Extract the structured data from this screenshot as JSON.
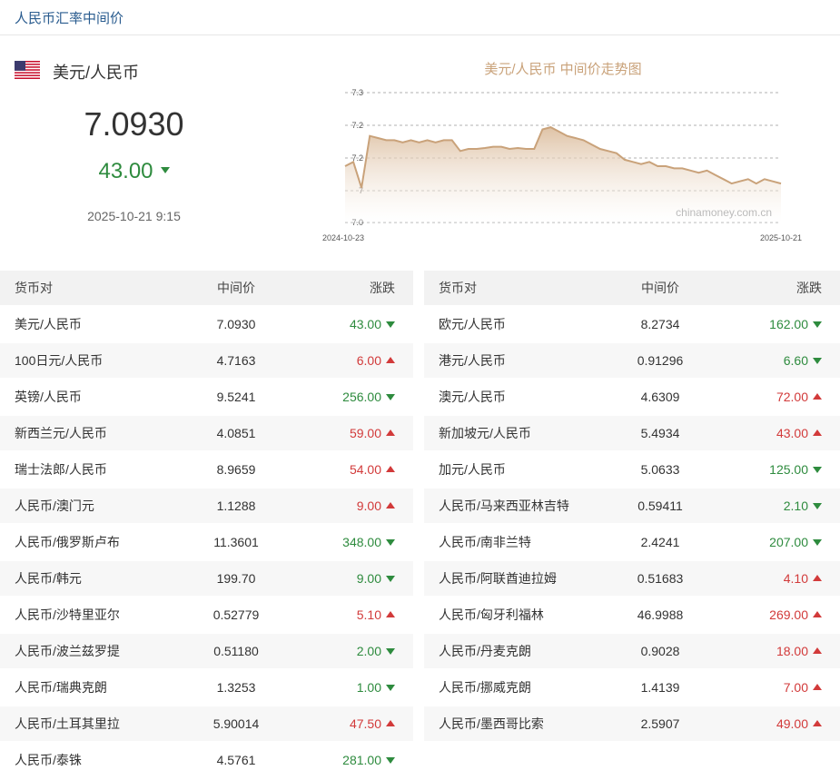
{
  "header": {
    "title": "人民币汇率中间价"
  },
  "featured": {
    "pair": "美元/人民币",
    "flag_icon": "us-flag-icon",
    "rate": "7.0930",
    "change": "43.00",
    "direction": "down",
    "time": "2025-10-21 9:15"
  },
  "chart": {
    "title": "美元/人民币 中间价走势图",
    "watermark": "chinamoney.com.cn",
    "x_start": "2024-10-23",
    "x_end": "2025-10-21",
    "color": "#c9a27a"
  },
  "chart_data": {
    "type": "area",
    "title": "美元/人民币 中间价走势图",
    "xlabel": "",
    "ylabel": "",
    "x_ticks": [
      "2024-10-23",
      "2025-10-21"
    ],
    "y_ticks": [
      "7.3",
      "7.2",
      "7.2",
      "7",
      "7.0"
    ],
    "ylim": [
      7.0,
      7.3
    ],
    "grid": true,
    "series": [
      {
        "values": [
          7.13,
          7.14,
          7.08,
          7.2,
          7.195,
          7.19,
          7.19,
          7.185,
          7.19,
          7.185,
          7.19,
          7.185,
          7.19,
          7.19,
          7.165,
          7.17,
          7.17,
          7.172,
          7.175,
          7.175,
          7.17,
          7.172,
          7.17,
          7.17,
          7.215,
          7.22,
          7.21,
          7.2,
          7.195,
          7.19,
          7.18,
          7.17,
          7.165,
          7.16,
          7.145,
          7.14,
          7.135,
          7.14,
          7.13,
          7.13,
          7.125,
          7.125,
          7.12,
          7.115,
          7.12,
          7.11,
          7.1,
          7.09,
          7.095,
          7.1,
          7.09,
          7.1,
          7.095,
          7.09
        ]
      }
    ]
  },
  "table_headers": {
    "pair": "货币对",
    "mid": "中间价",
    "change": "涨跌"
  },
  "left_rows": [
    {
      "pair": "美元/人民币",
      "mid": "7.0930",
      "change": "43.00",
      "dir": "down"
    },
    {
      "pair": "100日元/人民币",
      "mid": "4.7163",
      "change": "6.00",
      "dir": "up"
    },
    {
      "pair": "英镑/人民币",
      "mid": "9.5241",
      "change": "256.00",
      "dir": "down"
    },
    {
      "pair": "新西兰元/人民币",
      "mid": "4.0851",
      "change": "59.00",
      "dir": "up"
    },
    {
      "pair": "瑞士法郎/人民币",
      "mid": "8.9659",
      "change": "54.00",
      "dir": "up"
    },
    {
      "pair": "人民币/澳门元",
      "mid": "1.1288",
      "change": "9.00",
      "dir": "up"
    },
    {
      "pair": "人民币/俄罗斯卢布",
      "mid": "11.3601",
      "change": "348.00",
      "dir": "down"
    },
    {
      "pair": "人民币/韩元",
      "mid": "199.70",
      "change": "9.00",
      "dir": "down"
    },
    {
      "pair": "人民币/沙特里亚尔",
      "mid": "0.52779",
      "change": "5.10",
      "dir": "up"
    },
    {
      "pair": "人民币/波兰兹罗提",
      "mid": "0.51180",
      "change": "2.00",
      "dir": "down"
    },
    {
      "pair": "人民币/瑞典克朗",
      "mid": "1.3253",
      "change": "1.00",
      "dir": "down"
    },
    {
      "pair": "人民币/土耳其里拉",
      "mid": "5.90014",
      "change": "47.50",
      "dir": "up"
    },
    {
      "pair": "人民币/泰铢",
      "mid": "4.5761",
      "change": "281.00",
      "dir": "down"
    }
  ],
  "right_rows": [
    {
      "pair": "欧元/人民币",
      "mid": "8.2734",
      "change": "162.00",
      "dir": "down"
    },
    {
      "pair": "港元/人民币",
      "mid": "0.91296",
      "change": "6.60",
      "dir": "down"
    },
    {
      "pair": "澳元/人民币",
      "mid": "4.6309",
      "change": "72.00",
      "dir": "up"
    },
    {
      "pair": "新加坡元/人民币",
      "mid": "5.4934",
      "change": "43.00",
      "dir": "up"
    },
    {
      "pair": "加元/人民币",
      "mid": "5.0633",
      "change": "125.00",
      "dir": "down"
    },
    {
      "pair": "人民币/马来西亚林吉特",
      "mid": "0.59411",
      "change": "2.10",
      "dir": "down"
    },
    {
      "pair": "人民币/南非兰特",
      "mid": "2.4241",
      "change": "207.00",
      "dir": "down"
    },
    {
      "pair": "人民币/阿联酋迪拉姆",
      "mid": "0.51683",
      "change": "4.10",
      "dir": "up"
    },
    {
      "pair": "人民币/匈牙利福林",
      "mid": "46.9988",
      "change": "269.00",
      "dir": "up"
    },
    {
      "pair": "人民币/丹麦克朗",
      "mid": "0.9028",
      "change": "18.00",
      "dir": "up"
    },
    {
      "pair": "人民币/挪威克朗",
      "mid": "1.4139",
      "change": "7.00",
      "dir": "up"
    },
    {
      "pair": "人民币/墨西哥比索",
      "mid": "2.5907",
      "change": "49.00",
      "dir": "up"
    }
  ],
  "colors": {
    "up": "#d23a3a",
    "down": "#2e8b3e",
    "header_link": "#2a5c8f"
  }
}
